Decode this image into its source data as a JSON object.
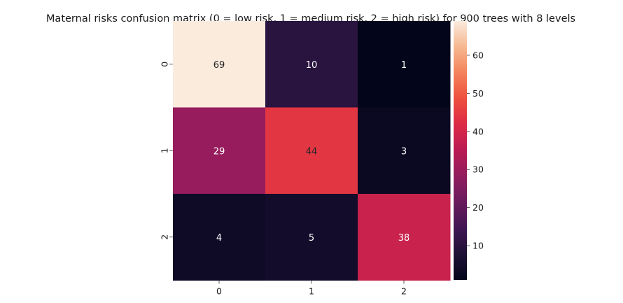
{
  "chart_data": {
    "type": "heatmap",
    "title": "Maternal risks confusion matrix (0 = low risk, 1 = medium risk, 2 = high risk) for 900 trees with 8 levels",
    "xlabel": "",
    "ylabel": "",
    "x_categories": [
      "0",
      "1",
      "2"
    ],
    "y_categories": [
      "0",
      "1",
      "2"
    ],
    "values": [
      [
        69,
        10,
        1
      ],
      [
        29,
        44,
        3
      ],
      [
        4,
        5,
        38
      ]
    ],
    "colorbar": {
      "min": 1,
      "max": 69,
      "ticks": [
        10,
        20,
        30,
        40,
        50,
        60
      ],
      "colormap": "rocket"
    },
    "grid": false,
    "legend": "none"
  }
}
